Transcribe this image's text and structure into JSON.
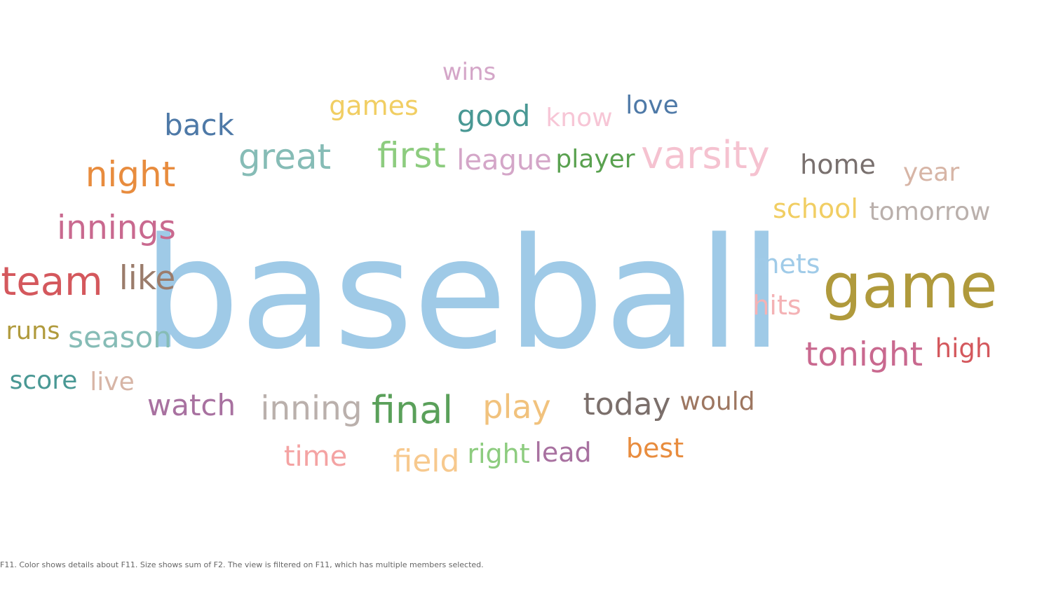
{
  "caption": "F11.  Color shows details about F11.  Size shows sum of F2. The view is filtered on F11, which has multiple members selected.",
  "chart_data": {
    "type": "wordcloud",
    "words": [
      {
        "text": "baseball",
        "color": "#9fcae7"
      },
      {
        "text": "game",
        "color": "#b09a3c"
      },
      {
        "text": "team",
        "color": "#d4585d"
      },
      {
        "text": "varsity",
        "color": "#f5c2d0"
      },
      {
        "text": "night",
        "color": "#e88c3e"
      },
      {
        "text": "final",
        "color": "#5aa05a"
      },
      {
        "text": "great",
        "color": "#86bcb6"
      },
      {
        "text": "first",
        "color": "#8dcc7f"
      },
      {
        "text": "tonight",
        "color": "#c9698f"
      },
      {
        "text": "innings",
        "color": "#c9698f"
      },
      {
        "text": "like",
        "color": "#9b7c6b"
      },
      {
        "text": "season",
        "color": "#86bcb6"
      },
      {
        "text": "inning",
        "color": "#bab0ac"
      },
      {
        "text": "play",
        "color": "#f1c27d"
      },
      {
        "text": "today",
        "color": "#7b6f6b"
      },
      {
        "text": "watch",
        "color": "#a871a0"
      },
      {
        "text": "home",
        "color": "#79706e"
      },
      {
        "text": "back",
        "color": "#4e79a7"
      },
      {
        "text": "league",
        "color": "#d4a6c8"
      },
      {
        "text": "good",
        "color": "#499894"
      },
      {
        "text": "games",
        "color": "#f1ce63"
      },
      {
        "text": "time",
        "color": "#f4a3a3"
      },
      {
        "text": "field",
        "color": "#f7c98e"
      },
      {
        "text": "school",
        "color": "#f1ce63"
      },
      {
        "text": "tomorrow",
        "color": "#bab0ac"
      },
      {
        "text": "player",
        "color": "#59a14f"
      },
      {
        "text": "would",
        "color": "#9d7660"
      },
      {
        "text": "best",
        "color": "#e88c3e"
      },
      {
        "text": "lead",
        "color": "#a871a0"
      },
      {
        "text": "love",
        "color": "#4e79a7"
      },
      {
        "text": "know",
        "color": "#f7c6d6"
      },
      {
        "text": "wins",
        "color": "#d4a6c8"
      },
      {
        "text": "mets",
        "color": "#a0cbe8"
      },
      {
        "text": "hits",
        "color": "#f4b2b5"
      },
      {
        "text": "high",
        "color": "#d4585d"
      },
      {
        "text": "year",
        "color": "#d7b5a6"
      },
      {
        "text": "right",
        "color": "#8dcc7f"
      },
      {
        "text": "live",
        "color": "#d7b5a6"
      },
      {
        "text": "score",
        "color": "#499894"
      },
      {
        "text": "runs",
        "color": "#b09a3c"
      }
    ]
  }
}
